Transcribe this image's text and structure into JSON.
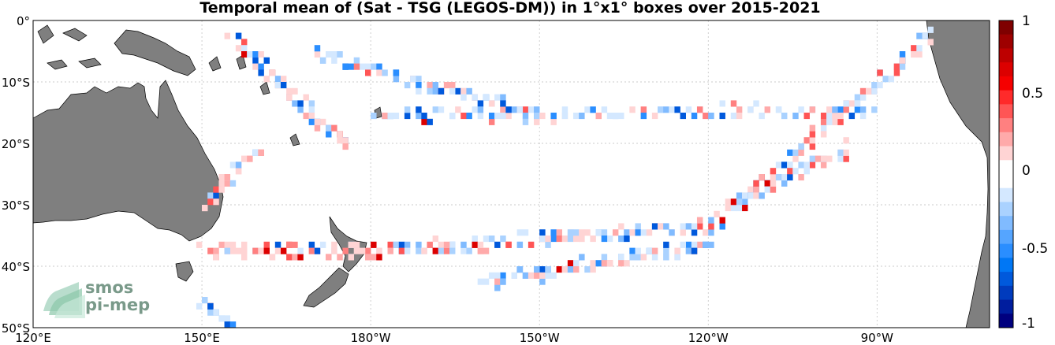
{
  "title": "Temporal mean of (Sat - TSG (LEGOS-DM)) in 1°x1° boxes over 2015-2021",
  "lon_ticks": [
    "120°E",
    "150°E",
    "180°W",
    "150°W",
    "120°W",
    "90°W"
  ],
  "lat_ticks": [
    "0°",
    "10°S",
    "20°S",
    "30°S",
    "40°S",
    "50°S"
  ],
  "colorbar_ticks": [
    "1",
    "0.5",
    "0",
    "-0.5",
    "-1"
  ],
  "colorbar_range": [
    -1,
    1
  ],
  "map_extent": {
    "lon": [
      120,
      290
    ],
    "lat": [
      -50,
      0
    ]
  },
  "colors": {
    "land": "#7f7f7f",
    "cb_top": "#7f0000",
    "cb_bottom": "#00007f",
    "neutral": "#ffffff"
  },
  "logo": {
    "line1": "smos",
    "line2": "pi-mep"
  }
}
